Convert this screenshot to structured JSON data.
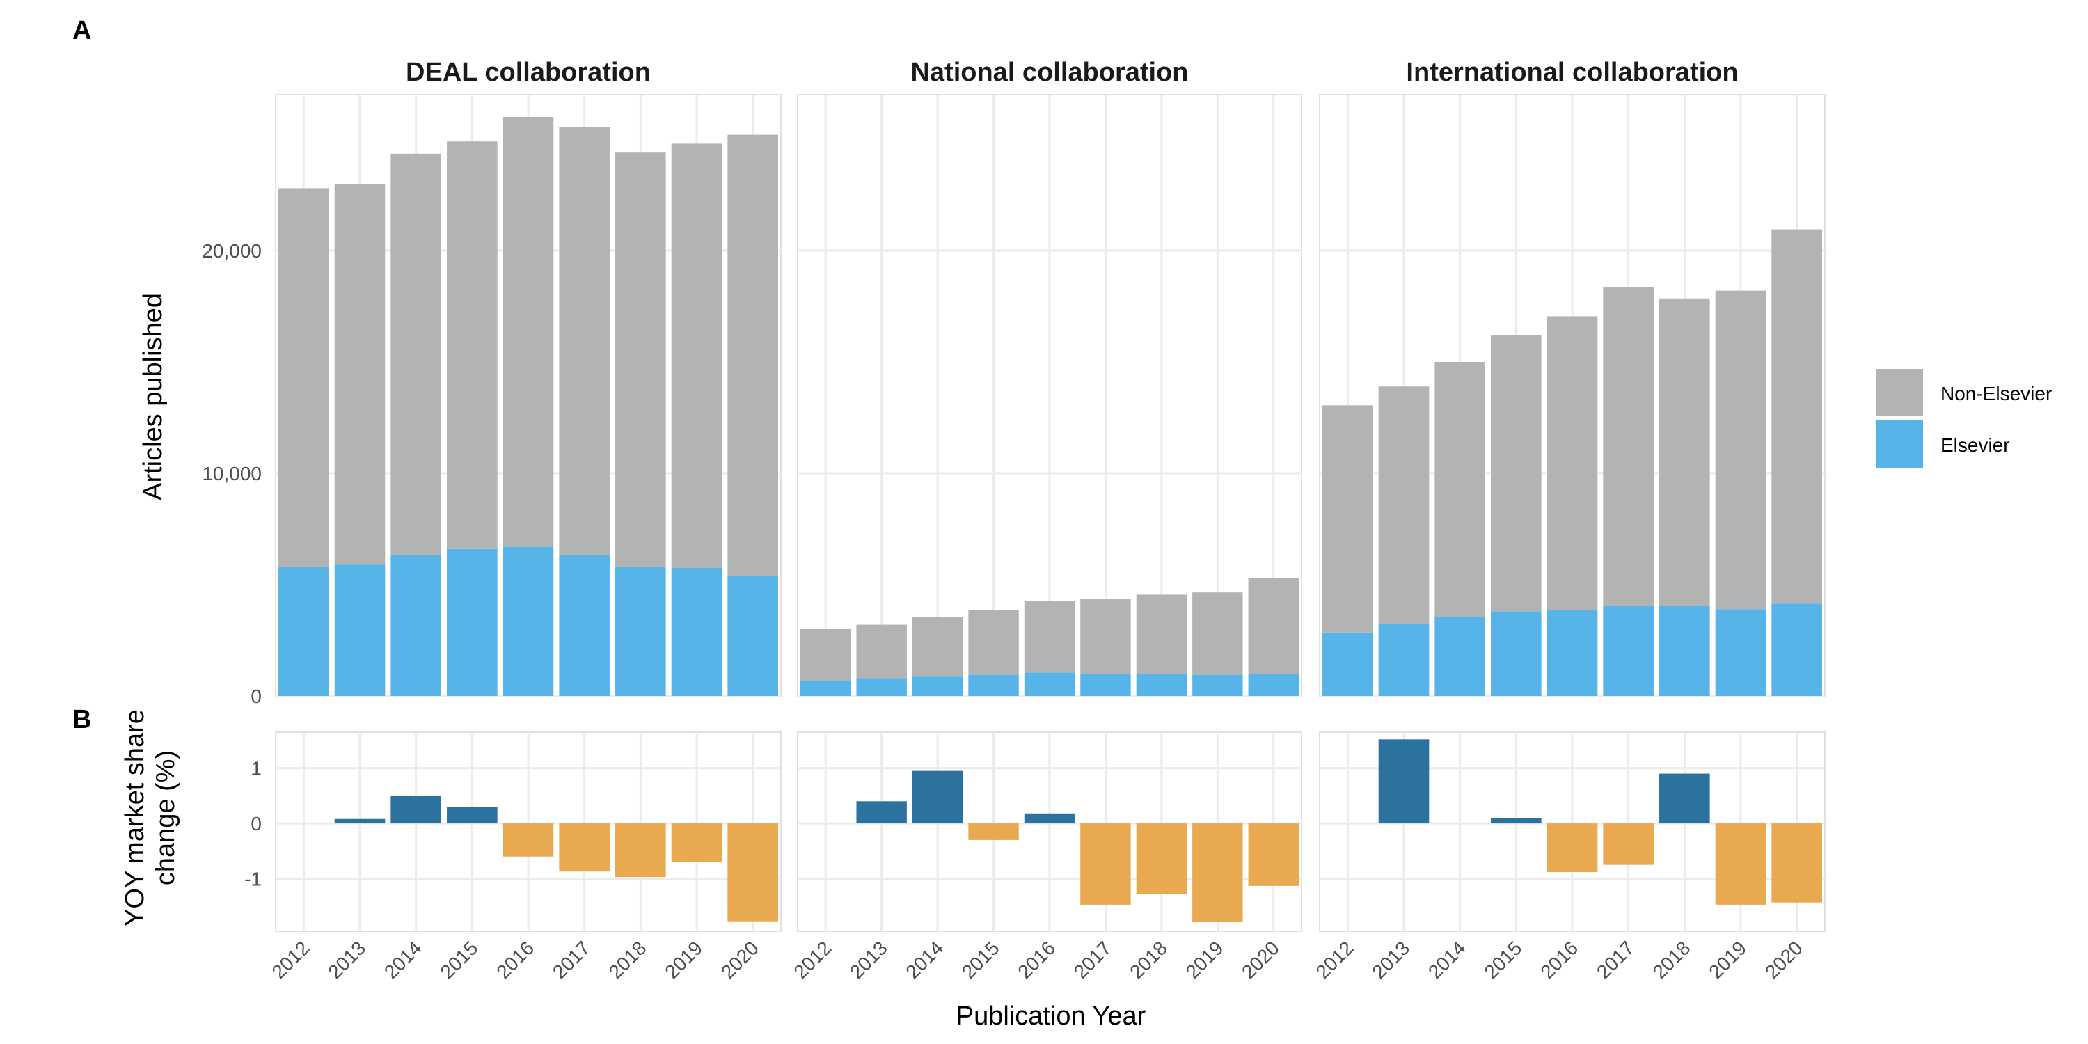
{
  "figure": {
    "panel_labels": [
      "A",
      "B"
    ],
    "xlabel": "Publication Year"
  },
  "chart_data": [
    {
      "type": "bar",
      "stacked": true,
      "panel": "A",
      "ylabel": "Articles published",
      "ylim": [
        0,
        27000
      ],
      "yticks": [
        0,
        10000,
        20000
      ],
      "ytick_labels": [
        "0",
        "10,000",
        "20,000"
      ],
      "categories": [
        "2012",
        "2013",
        "2014",
        "2015",
        "2016",
        "2017",
        "2018",
        "2019",
        "2020"
      ],
      "legend": {
        "placement": "right",
        "entries": [
          {
            "name": "Non-Elsevier",
            "color": "#b3b3b3"
          },
          {
            "name": "Elsevier",
            "color": "#56b4e9"
          }
        ]
      },
      "facets": [
        {
          "title": "DEAL collaboration",
          "series": [
            {
              "name": "Elsevier",
              "values": [
                5800,
                5900,
                6350,
                6600,
                6700,
                6350,
                5800,
                5750,
                5400
              ]
            },
            {
              "name": "Non-Elsevier",
              "values": [
                17000,
                17100,
                18000,
                18300,
                19300,
                19200,
                18600,
                19050,
                19800
              ]
            }
          ]
        },
        {
          "title": "National collaboration",
          "series": [
            {
              "name": "Elsevier",
              "values": [
                700,
                800,
                900,
                950,
                1050,
                1000,
                1000,
                950,
                1000
              ]
            },
            {
              "name": "Non-Elsevier",
              "values": [
                2300,
                2400,
                2650,
                2900,
                3200,
                3350,
                3550,
                3700,
                4300
              ]
            }
          ]
        },
        {
          "title": "International collaboration",
          "series": [
            {
              "name": "Elsevier",
              "values": [
                2850,
                3250,
                3550,
                3800,
                3850,
                4050,
                4050,
                3900,
                4150
              ]
            },
            {
              "name": "Non-Elsevier",
              "values": [
                10200,
                10650,
                11450,
                12400,
                13200,
                14300,
                13800,
                14300,
                16800
              ]
            }
          ]
        }
      ]
    },
    {
      "type": "bar",
      "panel": "B",
      "ylabel_lines": [
        "YOY market share",
        "change (%)"
      ],
      "ylim": [
        -1.95,
        1.65
      ],
      "yticks": [
        -1,
        0,
        1
      ],
      "ytick_labels": [
        "-1",
        "0",
        "1"
      ],
      "categories": [
        "2012",
        "2013",
        "2014",
        "2015",
        "2016",
        "2017",
        "2018",
        "2019",
        "2020"
      ],
      "colors": {
        "positive": "#2b729f",
        "negative": "#e8a951"
      },
      "facets": [
        {
          "values": [
            null,
            0.08,
            0.5,
            0.3,
            -0.6,
            -0.87,
            -0.97,
            -0.7,
            -1.77
          ]
        },
        {
          "values": [
            null,
            0.4,
            0.95,
            -0.3,
            0.18,
            -1.47,
            -1.28,
            -1.78,
            -1.13
          ]
        },
        {
          "values": [
            null,
            1.52,
            null,
            0.1,
            -0.88,
            -0.75,
            0.9,
            -1.47,
            -1.43
          ]
        }
      ]
    }
  ]
}
